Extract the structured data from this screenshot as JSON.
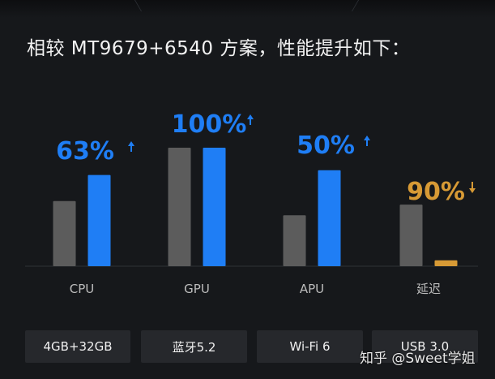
{
  "headline": "相较 MT9679+6540 方案，性能提升如下：",
  "chart_data": {
    "type": "bar",
    "categories": [
      "CPU",
      "GPU",
      "APU",
      "延迟"
    ],
    "series": [
      {
        "values": [
          0.55,
          1.0,
          0.43,
          0.52
        ]
      },
      {
        "values": [
          0.77,
          1.0,
          0.81,
          0.05
        ]
      }
    ],
    "annotations": [
      {
        "category": "CPU",
        "text": "63%",
        "direction": "up",
        "color": "#1f7ef5"
      },
      {
        "category": "GPU",
        "text": "100%",
        "direction": "up",
        "color": "#1f7ef5"
      },
      {
        "category": "APU",
        "text": "50%",
        "direction": "up",
        "color": "#1f7ef5"
      },
      {
        "category": "延迟",
        "text": "90%",
        "direction": "down",
        "color": "#d79a35"
      }
    ],
    "colors": {
      "baseline": "#5c5c5c",
      "improved": "#1f7ef5",
      "latency": "#d79a35",
      "arrow_up": "#1f7ef5",
      "arrow_down": "#d79a35"
    }
  },
  "features": [
    "4GB+32GB",
    "蓝牙5.2",
    "Wi-Fi 6",
    "USB 3.0"
  ],
  "watermark": "知乎 @Sweet学姐"
}
